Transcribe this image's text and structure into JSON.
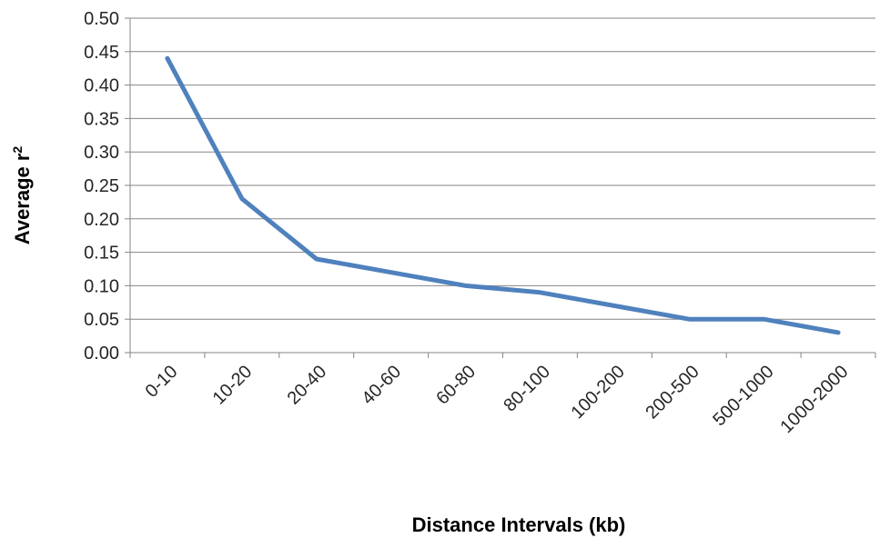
{
  "chart_data": {
    "type": "line",
    "title": "",
    "xlabel": "Distance Intervals (kb)",
    "ylabel": "Average r",
    "ylabel_superscript": "2",
    "categories": [
      "0-10",
      "10-20",
      "20-40",
      "40-60",
      "60-80",
      "80-100",
      "100-200",
      "200-500",
      "500-1000",
      "1000-2000"
    ],
    "series": [
      {
        "values": [
          0.44,
          0.23,
          0.14,
          0.12,
          0.1,
          0.09,
          0.07,
          0.05,
          0.05,
          0.03
        ]
      }
    ],
    "ylim": [
      0,
      0.5
    ],
    "yticks": [
      "0.00",
      "0.05",
      "0.10",
      "0.15",
      "0.20",
      "0.25",
      "0.30",
      "0.35",
      "0.40",
      "0.45",
      "0.50"
    ],
    "grid": "horizontal",
    "legend": "none",
    "colors": {
      "line": "#4f81bd",
      "grid": "#868686",
      "axis": "#868686"
    }
  }
}
